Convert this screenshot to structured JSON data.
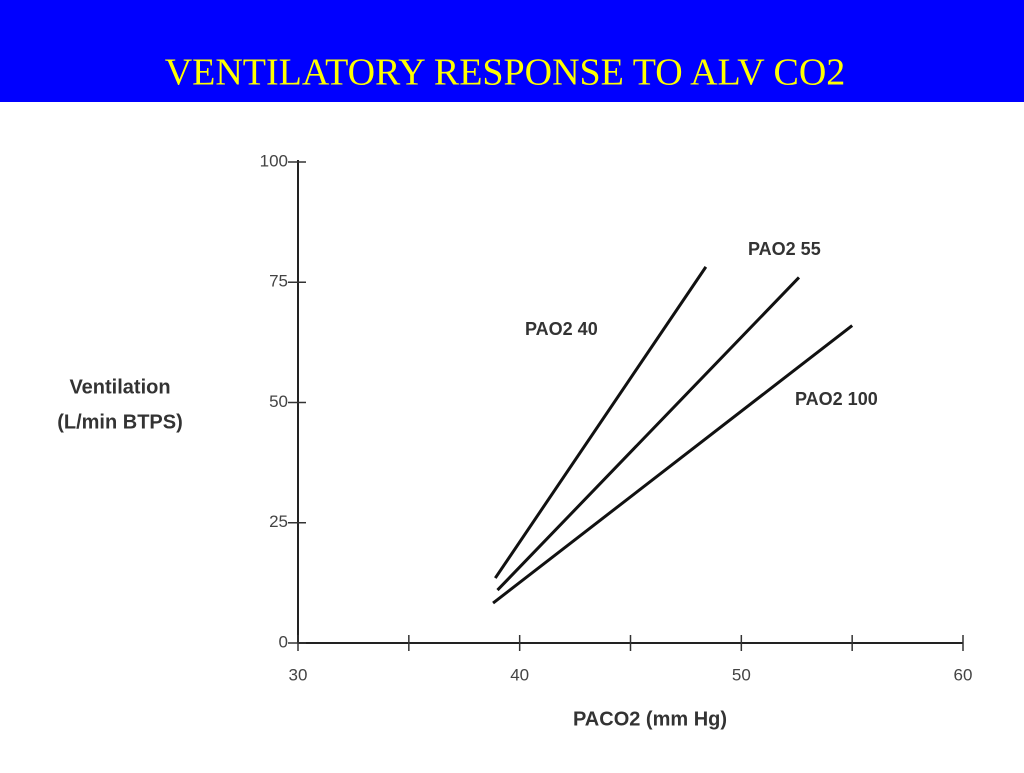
{
  "chart_data": {
    "type": "line",
    "title": "VENTILATORY RESPONSE TO ALV CO2",
    "ylabel": [
      "Ventilation",
      "(L/min BTPS)"
    ],
    "xlabel": "PACO2 (mm Hg)",
    "xlim": [
      30,
      60
    ],
    "xticks": [
      30,
      40,
      50,
      60
    ],
    "xticks_minor": [
      35,
      45,
      55
    ],
    "ylim": [
      0,
      100
    ],
    "yticks": [
      0,
      25,
      50,
      75,
      100
    ],
    "series": [
      {
        "name": "PAO2 40",
        "color": "#111111",
        "x": [
          38.9,
          48.4
        ],
        "values": [
          13.5,
          78.2
        ]
      },
      {
        "name": "PAO2 55",
        "color": "#111111",
        "x": [
          39.0,
          52.6
        ],
        "values": [
          11,
          76
        ]
      },
      {
        "name": "PAO2 100",
        "color": "#111111",
        "x": [
          38.8,
          55.0
        ],
        "values": [
          8.3,
          66
        ]
      }
    ]
  }
}
